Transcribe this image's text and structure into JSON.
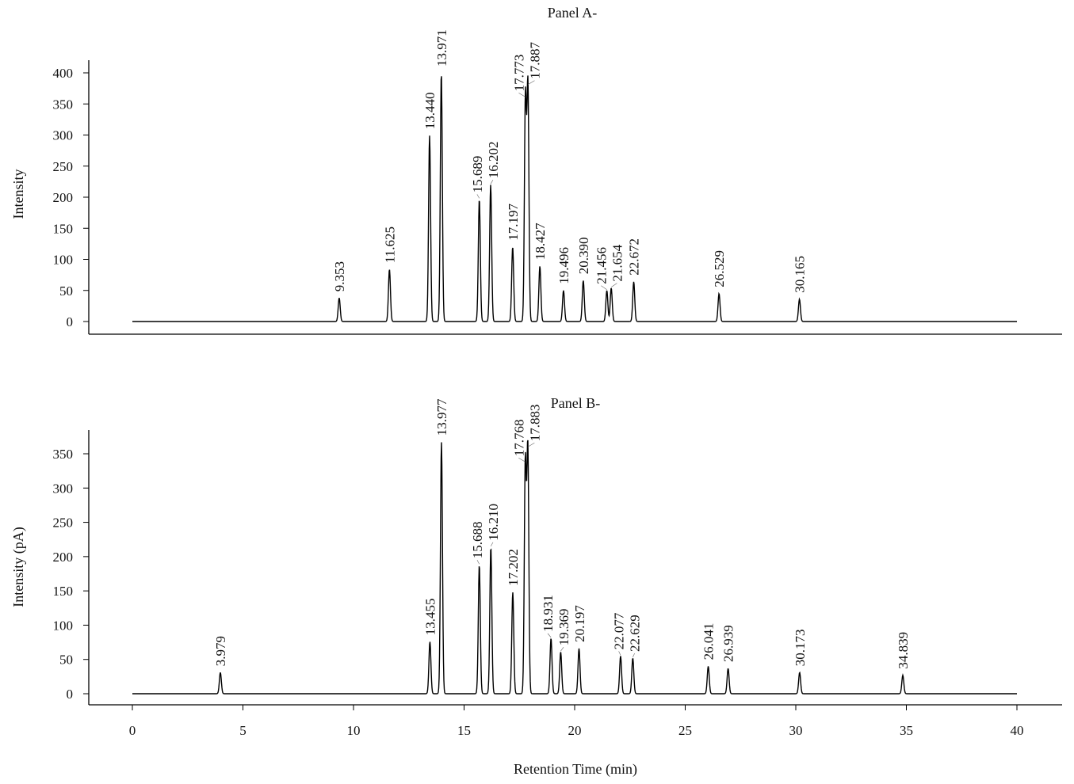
{
  "chart_data": {
    "type": "line",
    "xlabel": "Retention Time (min)",
    "xlim": [
      0,
      40
    ],
    "xticks": [
      0,
      5,
      10,
      15,
      20,
      25,
      30,
      35,
      40
    ],
    "panels": [
      {
        "title": "Panel A-",
        "ylabel": "Intensity",
        "ylim": [
          0,
          400
        ],
        "yticks": [
          0,
          50,
          100,
          150,
          200,
          250,
          300,
          350,
          400
        ],
        "peaks": [
          {
            "label": "9.353",
            "x": 9.353,
            "y": 38
          },
          {
            "label": "11.625",
            "x": 11.625,
            "y": 84
          },
          {
            "label": "13.440",
            "x": 13.44,
            "y": 299
          },
          {
            "label": "13.971",
            "x": 13.971,
            "y": 400
          },
          {
            "label": "15.689",
            "x": 15.689,
            "y": 197
          },
          {
            "label": "16.202",
            "x": 16.202,
            "y": 220
          },
          {
            "label": "17.197",
            "x": 17.197,
            "y": 120
          },
          {
            "label": "17.773",
            "x": 17.773,
            "y": 360
          },
          {
            "label": "17.887",
            "x": 17.887,
            "y": 380
          },
          {
            "label": "18.427",
            "x": 18.427,
            "y": 89
          },
          {
            "label": "19.496",
            "x": 19.496,
            "y": 50
          },
          {
            "label": "20.390",
            "x": 20.39,
            "y": 66
          },
          {
            "label": "21.456",
            "x": 21.456,
            "y": 50
          },
          {
            "label": "21.654",
            "x": 21.654,
            "y": 54
          },
          {
            "label": "22.672",
            "x": 22.672,
            "y": 64
          },
          {
            "label": "26.529",
            "x": 26.529,
            "y": 45
          },
          {
            "label": "30.165",
            "x": 30.165,
            "y": 36
          }
        ]
      },
      {
        "title": "Panel B-",
        "ylabel": "Intensity (pA)",
        "ylim": [
          0,
          350
        ],
        "yticks": [
          0,
          50,
          100,
          150,
          200,
          250,
          300,
          350
        ],
        "peaks": [
          {
            "label": "3.979",
            "x": 3.979,
            "y": 31
          },
          {
            "label": "13.455",
            "x": 13.455,
            "y": 76
          },
          {
            "label": "13.977",
            "x": 13.977,
            "y": 367
          },
          {
            "label": "15.688",
            "x": 15.688,
            "y": 188
          },
          {
            "label": "16.210",
            "x": 16.21,
            "y": 214
          },
          {
            "label": "17.202",
            "x": 17.202,
            "y": 148
          },
          {
            "label": "17.768",
            "x": 17.768,
            "y": 337
          },
          {
            "label": "17.883",
            "x": 17.883,
            "y": 359
          },
          {
            "label": "18.931",
            "x": 18.931,
            "y": 81
          },
          {
            "label": "19.369",
            "x": 19.369,
            "y": 61
          },
          {
            "label": "20.197",
            "x": 20.197,
            "y": 66
          },
          {
            "label": "22.077",
            "x": 22.077,
            "y": 55
          },
          {
            "label": "22.629",
            "x": 22.629,
            "y": 52
          },
          {
            "label": "26.041",
            "x": 26.041,
            "y": 40
          },
          {
            "label": "26.939",
            "x": 26.939,
            "y": 37
          },
          {
            "label": "30.173",
            "x": 30.173,
            "y": 31
          },
          {
            "label": "34.839",
            "x": 34.839,
            "y": 27
          }
        ]
      }
    ]
  }
}
